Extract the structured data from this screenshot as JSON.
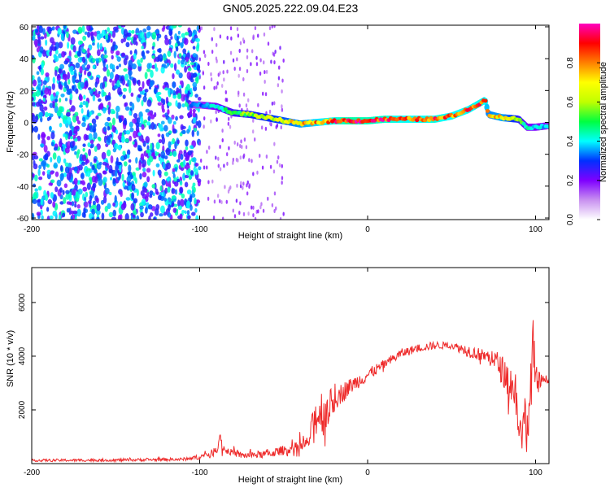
{
  "figure": {
    "title": "GN05.2025.222.09.04.E23"
  },
  "chart_data": [
    {
      "type": "heatmap",
      "xlabel": "Height of straight line (km)",
      "ylabel": "Frequency (Hz)",
      "xlim": [
        -200,
        108
      ],
      "ylim": [
        -61,
        61
      ],
      "xticks": [
        -200,
        -100,
        0,
        100
      ],
      "yticks": [
        -60,
        -40,
        -20,
        0,
        20,
        40,
        60
      ],
      "colorbar": {
        "label": "Normalized spectral amplitude",
        "range": [
          0,
          1
        ],
        "ticks": [
          0.0,
          0.2,
          0.4,
          0.6,
          0.8
        ],
        "colormap": [
          "#ffffff",
          "#c890f0",
          "#7f00ff",
          "#0030ff",
          "#00ffff",
          "#00ff40",
          "#c0ff00",
          "#ffff00",
          "#ff8000",
          "#ff0000",
          "#ff00c0"
        ]
      },
      "ridge": {
        "x": [
          -100,
          -90,
          -80,
          -70,
          -60,
          -50,
          -40,
          -30,
          -20,
          -10,
          0,
          10,
          20,
          30,
          40,
          50,
          60,
          70,
          72,
          80,
          90,
          95,
          100,
          108
        ],
        "y": [
          11,
          10,
          6,
          5,
          3,
          1,
          -1,
          0,
          1,
          1,
          1,
          2,
          2,
          2,
          2,
          4,
          8,
          14,
          5,
          3,
          2,
          -3,
          -3,
          -2
        ],
        "amplitude": [
          0.35,
          0.45,
          0.55,
          0.6,
          0.65,
          0.7,
          0.78,
          0.85,
          0.92,
          1.0,
          0.97,
          0.95,
          0.9,
          0.9,
          0.92,
          0.88,
          0.9,
          0.9,
          0.75,
          0.8,
          0.6,
          0.45,
          0.45,
          0.4
        ]
      }
    },
    {
      "type": "line",
      "xlabel": "Height of straight line (km)",
      "ylabel": "SNR (10 * v/v)",
      "xlim": [
        -200,
        108
      ],
      "ylim": [
        0,
        7300
      ],
      "xticks": [
        -200,
        -100,
        0,
        100
      ],
      "yticks": [
        2000,
        4000,
        6000
      ],
      "series": [
        {
          "color": "#ee2a2a",
          "envelope": {
            "x": [
              -200,
              -150,
              -110,
              -100,
              -92,
              -88,
              -85,
              -75,
              -60,
              -50,
              -40,
              -35,
              -32,
              -28,
              -25,
              -22,
              -18,
              -10,
              0,
              10,
              20,
              30,
              40,
              50,
              60,
              70,
              75,
              80,
              85,
              88,
              90,
              92,
              94,
              96,
              98,
              100,
              104,
              108
            ],
            "mean": [
              120,
              130,
              160,
              250,
              400,
              900,
              500,
              300,
              350,
              500,
              600,
              800,
              1700,
              1900,
              2000,
              2200,
              2500,
              2900,
              3300,
              3700,
              4100,
              4300,
              4400,
              4400,
              4200,
              4000,
              3900,
              3500,
              3000,
              2700,
              1600,
              700,
              2000,
              1200,
              4500,
              3000,
              3100,
              3150
            ],
            "amplitude": [
              80,
              90,
              100,
              150,
              250,
              500,
              200,
              200,
              250,
              300,
              400,
              400,
              1000,
              1600,
              1500,
              1000,
              700,
              500,
              400,
              300,
              300,
              250,
              250,
              200,
              400,
              400,
              700,
              900,
              1200,
              1500,
              1200,
              800,
              2500,
              1500,
              2800,
              1200,
              300,
              250
            ]
          }
        }
      ]
    }
  ]
}
